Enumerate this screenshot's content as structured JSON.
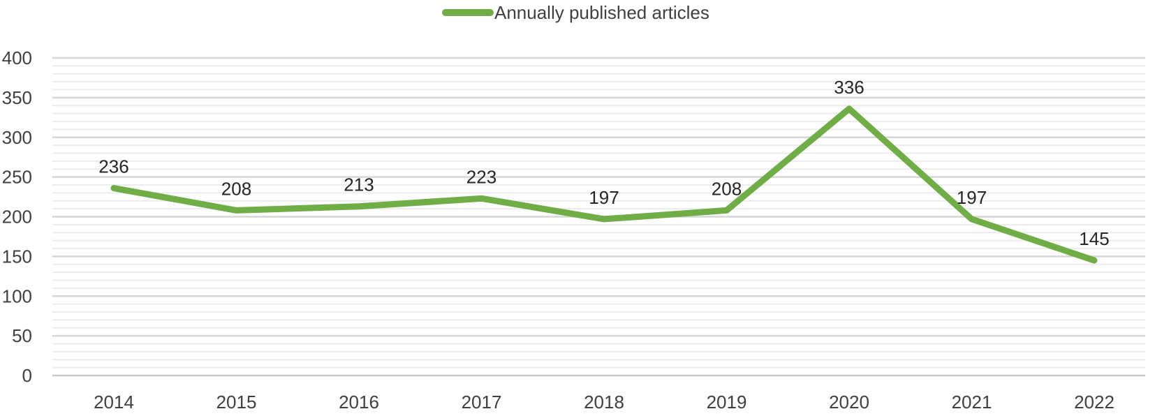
{
  "chart_data": {
    "type": "line",
    "x": [
      "2014",
      "2015",
      "2016",
      "2017",
      "2018",
      "2019",
      "2020",
      "2021",
      "2022"
    ],
    "series": [
      {
        "name": "Annually published articles",
        "values": [
          236,
          208,
          213,
          223,
          197,
          208,
          336,
          197,
          145
        ],
        "color": "#70ad47"
      }
    ],
    "ylim": [
      0,
      400
    ],
    "yticks": [
      0,
      50,
      100,
      150,
      200,
      250,
      300,
      350,
      400
    ],
    "y_minor_step": 10,
    "grid": true,
    "legend": "top-center",
    "data_labels": true,
    "title": "",
    "xlabel": "",
    "ylabel": ""
  }
}
